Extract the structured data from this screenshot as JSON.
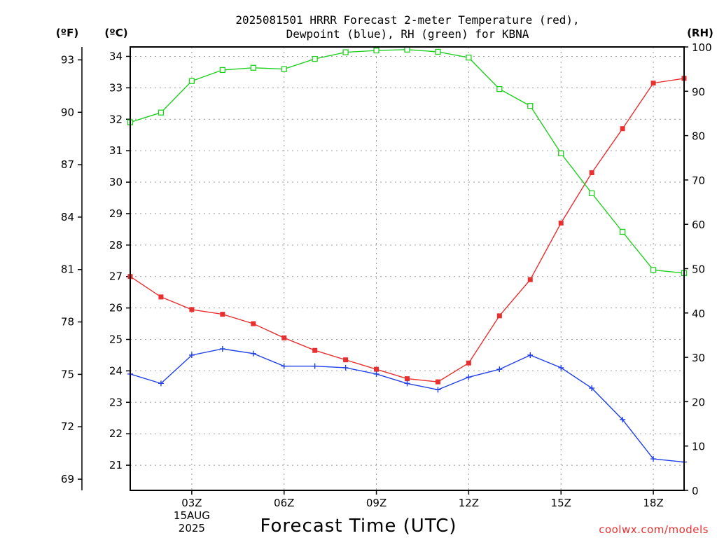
{
  "chart_data": {
    "type": "line",
    "title_lines": [
      "2025081501 HRRR Forecast 2-meter Temperature (red),",
      "Dewpoint (blue), RH (green) for KBNA"
    ],
    "xlabel": "Forecast Time (UTC)",
    "axis_units": {
      "left_f": "(ºF)",
      "left_c": "(ºC)",
      "right": "(RH)"
    },
    "x": [
      1,
      2,
      3,
      4,
      5,
      6,
      7,
      8,
      9,
      10,
      11,
      12,
      13,
      14,
      15,
      16,
      17,
      18,
      19
    ],
    "x_ticks": [
      {
        "x": 3,
        "label": "03Z",
        "sub": [
          "15AUG",
          "2025"
        ]
      },
      {
        "x": 6,
        "label": "06Z"
      },
      {
        "x": 9,
        "label": "09Z"
      },
      {
        "x": 12,
        "label": "12Z"
      },
      {
        "x": 15,
        "label": "15Z"
      },
      {
        "x": 18,
        "label": "18Z"
      }
    ],
    "xlim": [
      1,
      19
    ],
    "celsius_axis": {
      "ylim": [
        20.2,
        34.3
      ],
      "ticks": [
        21,
        22,
        23,
        24,
        25,
        26,
        27,
        28,
        29,
        30,
        31,
        32,
        33,
        34
      ]
    },
    "fahrenheit_ticks": [
      69,
      72,
      75,
      78,
      81,
      84,
      87,
      90,
      93
    ],
    "rh_axis": {
      "ylim": [
        0,
        100
      ],
      "ticks": [
        0,
        10,
        20,
        30,
        40,
        50,
        60,
        70,
        80,
        90,
        100
      ]
    },
    "grid": true,
    "series": [
      {
        "name": "Temperature",
        "axis": "celsius",
        "color": "#e83030",
        "marker": "filled-square",
        "values": [
          27.0,
          26.35,
          25.95,
          25.8,
          25.5,
          25.05,
          24.65,
          24.35,
          24.05,
          23.75,
          23.65,
          24.25,
          25.75,
          26.9,
          28.7,
          30.3,
          31.7,
          33.15,
          33.3
        ]
      },
      {
        "name": "Dewpoint",
        "axis": "celsius",
        "color": "#2040e8",
        "marker": "plus",
        "values": [
          23.9,
          23.6,
          24.5,
          24.7,
          24.55,
          24.15,
          24.15,
          24.1,
          23.9,
          23.6,
          23.4,
          23.8,
          24.05,
          24.5,
          24.1,
          23.45,
          22.45,
          21.2,
          21.1
        ]
      },
      {
        "name": "RH",
        "axis": "rh",
        "color": "#20d020",
        "marker": "open-square",
        "values": [
          83,
          85.2,
          92.3,
          94.8,
          95.3,
          95.0,
          97.3,
          98.8,
          99.2,
          99.4,
          98.9,
          97.6,
          90.5,
          86.7,
          76.0,
          67.0,
          58.3,
          49.7,
          49.0
        ]
      }
    ]
  },
  "credit": "coolwx.com/models"
}
